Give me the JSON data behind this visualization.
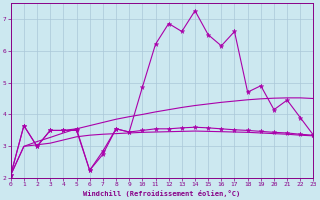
{
  "title": "",
  "xlabel": "Windchill (Refroidissement éolien,°C)",
  "background_color": "#cce8f0",
  "grid_color": "#aac8d8",
  "line_color": "#aa00aa",
  "xlim": [
    0,
    23
  ],
  "ylim": [
    2.0,
    7.5
  ],
  "yticks": [
    2,
    3,
    4,
    5,
    6,
    7
  ],
  "xticks": [
    0,
    1,
    2,
    3,
    4,
    5,
    6,
    7,
    8,
    9,
    10,
    11,
    12,
    13,
    14,
    15,
    16,
    17,
    18,
    19,
    20,
    21,
    22,
    23
  ],
  "series1_x": [
    0,
    1,
    2,
    3,
    4,
    5,
    6,
    7,
    8,
    9,
    10,
    11,
    12,
    13,
    14,
    15,
    16,
    17,
    18,
    19,
    20,
    21,
    22,
    23
  ],
  "series1_y": [
    2.1,
    3.65,
    3.0,
    3.5,
    3.5,
    3.55,
    2.25,
    2.85,
    3.55,
    3.45,
    4.85,
    6.2,
    6.85,
    6.6,
    7.25,
    6.5,
    6.15,
    6.6,
    4.7,
    4.9,
    4.15,
    4.45,
    3.9,
    3.35
  ],
  "series2_x": [
    0,
    1,
    2,
    3,
    4,
    5,
    6,
    7,
    8,
    9,
    10,
    11,
    12,
    13,
    14,
    15,
    16,
    17,
    18,
    19,
    20,
    21,
    22,
    23
  ],
  "series2_y": [
    2.1,
    3.0,
    3.05,
    3.1,
    3.2,
    3.3,
    3.35,
    3.38,
    3.4,
    3.42,
    3.44,
    3.45,
    3.46,
    3.47,
    3.48,
    3.47,
    3.46,
    3.45,
    3.44,
    3.42,
    3.4,
    3.38,
    3.35,
    3.33
  ],
  "series3_x": [
    0,
    1,
    2,
    3,
    4,
    5,
    6,
    7,
    8,
    9,
    10,
    11,
    12,
    13,
    14,
    15,
    16,
    17,
    18,
    19,
    20,
    21,
    22,
    23
  ],
  "series3_y": [
    2.1,
    3.0,
    3.15,
    3.28,
    3.42,
    3.55,
    3.65,
    3.75,
    3.85,
    3.93,
    4.0,
    4.08,
    4.15,
    4.22,
    4.28,
    4.33,
    4.38,
    4.42,
    4.46,
    4.49,
    4.51,
    4.52,
    4.52,
    4.5
  ],
  "series4_x": [
    0,
    1,
    2,
    3,
    4,
    5,
    6,
    7,
    8,
    9,
    10,
    11,
    12,
    13,
    14,
    15,
    16,
    17,
    18,
    19,
    20,
    21,
    22,
    23
  ],
  "series4_y": [
    2.1,
    3.65,
    3.0,
    3.5,
    3.5,
    3.5,
    2.25,
    2.75,
    3.55,
    3.45,
    3.5,
    3.55,
    3.55,
    3.58,
    3.6,
    3.58,
    3.55,
    3.52,
    3.5,
    3.47,
    3.44,
    3.42,
    3.38,
    3.35
  ]
}
